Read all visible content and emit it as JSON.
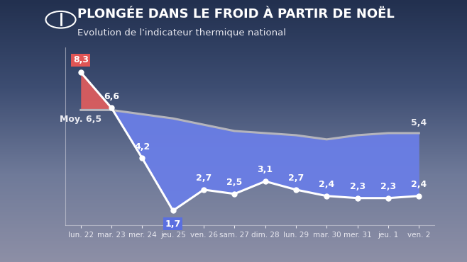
{
  "chart_data": {
    "type": "line",
    "title": "PLONGÉE DANS LE FROID À PARTIR DE NOËL",
    "subtitle": "Evolution de l'indicateur thermique national",
    "categories": [
      "lun. 22",
      "mar. 23",
      "mer. 24",
      "jeu. 25",
      "ven. 26",
      "sam. 27",
      "dim. 28",
      "lun. 29",
      "mar. 30",
      "mer. 31",
      "jeu. 1",
      "ven. 2"
    ],
    "series": [
      {
        "color": "#ffffff",
        "marker": "o",
        "values": [
          8.3,
          6.6,
          4.2,
          1.7,
          2.7,
          2.5,
          3.1,
          2.7,
          2.4,
          2.3,
          2.3,
          2.4
        ],
        "value_labels": [
          "8,3",
          "6,6",
          "4,2",
          "1,7",
          "2,7",
          "2,5",
          "3,1",
          "2,7",
          "2,4",
          "2,3",
          "2,3",
          "2,4"
        ]
      },
      {
        "color": "#b4b4bc",
        "marker": "none",
        "values": [
          6.5,
          6.5,
          6.3,
          6.1,
          5.8,
          5.5,
          5.4,
          5.3,
          5.1,
          5.3,
          5.4,
          5.4
        ],
        "value_labels": [
          "Moy. 6,5",
          null,
          null,
          null,
          null,
          null,
          null,
          null,
          null,
          null,
          null,
          "5,4"
        ]
      }
    ],
    "ylim": [
      1,
      9.5
    ],
    "tick_labels": "x",
    "grid": false,
    "data_labels": true
  }
}
